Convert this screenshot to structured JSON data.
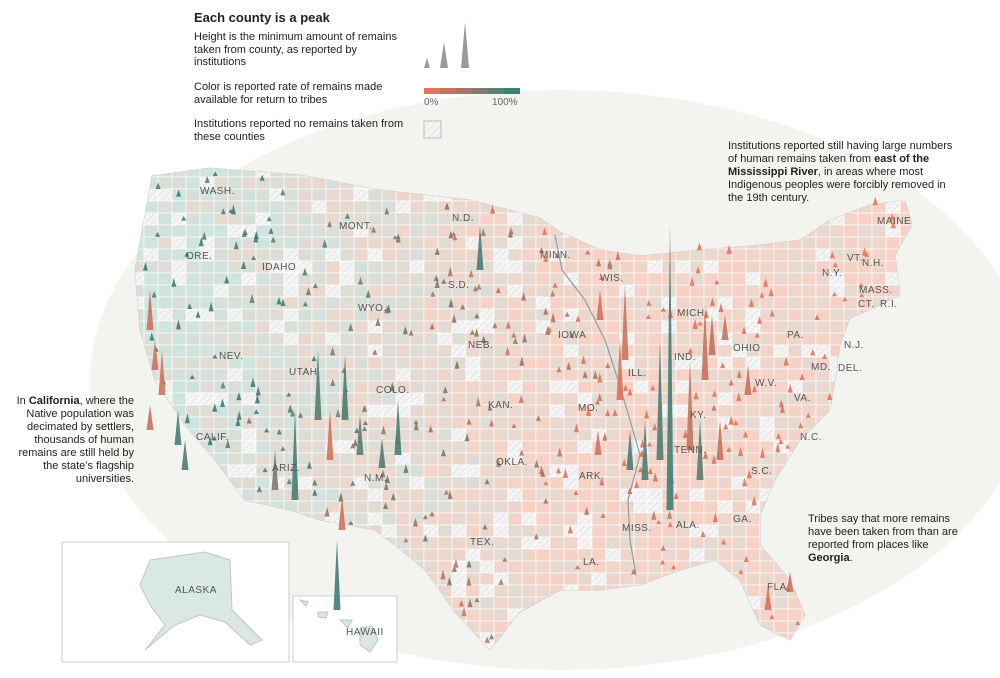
{
  "legend": {
    "title": "Each county is a peak",
    "height_text": "Height is the minimum amount of remains taken from county, as reported by institutions",
    "color_text": "Color is reported rate of remains made available for return to tribes",
    "color_scale_min": "0%",
    "color_scale_max": "100%",
    "none_text": "Institutions reported no remains taken from these counties"
  },
  "colors": {
    "low": "#e4745a",
    "high": "#3d8078",
    "low_fill": "#f6d2c6",
    "high_fill": "#cfe3df",
    "no_data": "#eeeeee",
    "land_bg": "#f0f0ec"
  },
  "annotations": {
    "east_pre": "Institutions reported still having large numbers of human remains taken from ",
    "east_bold": "east of the Mississippi River",
    "east_post": ", in areas where most Indigenous peoples were forcibly removed in the 19th century.",
    "ca_pre": "In ",
    "ca_bold": "California",
    "ca_post": ", where the Native population was decimated by settlers, thousands of human remains are still held by the state’s flagship universities.",
    "ga_pre": "Tribes say that more remains have been taken from ",
    "ga_mid": "than are reported from places like ",
    "ga_bold": "Georgia",
    "ga_post": "."
  },
  "states": [
    "WASH.",
    "ORE.",
    "IDAHO",
    "MONT.",
    "WYO.",
    "N.D.",
    "S.D.",
    "NEB.",
    "MINN.",
    "IOWA",
    "WIS.",
    "MICH.",
    "ILL.",
    "IND.",
    "OHIO",
    "PA.",
    "N.Y.",
    "VT.",
    "N.H.",
    "MAINE",
    "MASS.",
    "CT.",
    "R.I.",
    "N.J.",
    "MD.",
    "DEL.",
    "W.V.",
    "VA.",
    "KY.",
    "TENN.",
    "N.C.",
    "S.C.",
    "GA.",
    "ALA.",
    "MISS.",
    "LA.",
    "ARK.",
    "MO.",
    "KAN.",
    "OKLA.",
    "TEX.",
    "N.M.",
    "COLO.",
    "UTAH",
    "ARIZ.",
    "NEV.",
    "CALIF.",
    "FLA."
  ],
  "insets": {
    "alaska": "ALASKA",
    "hawaii": "HAWAII"
  }
}
